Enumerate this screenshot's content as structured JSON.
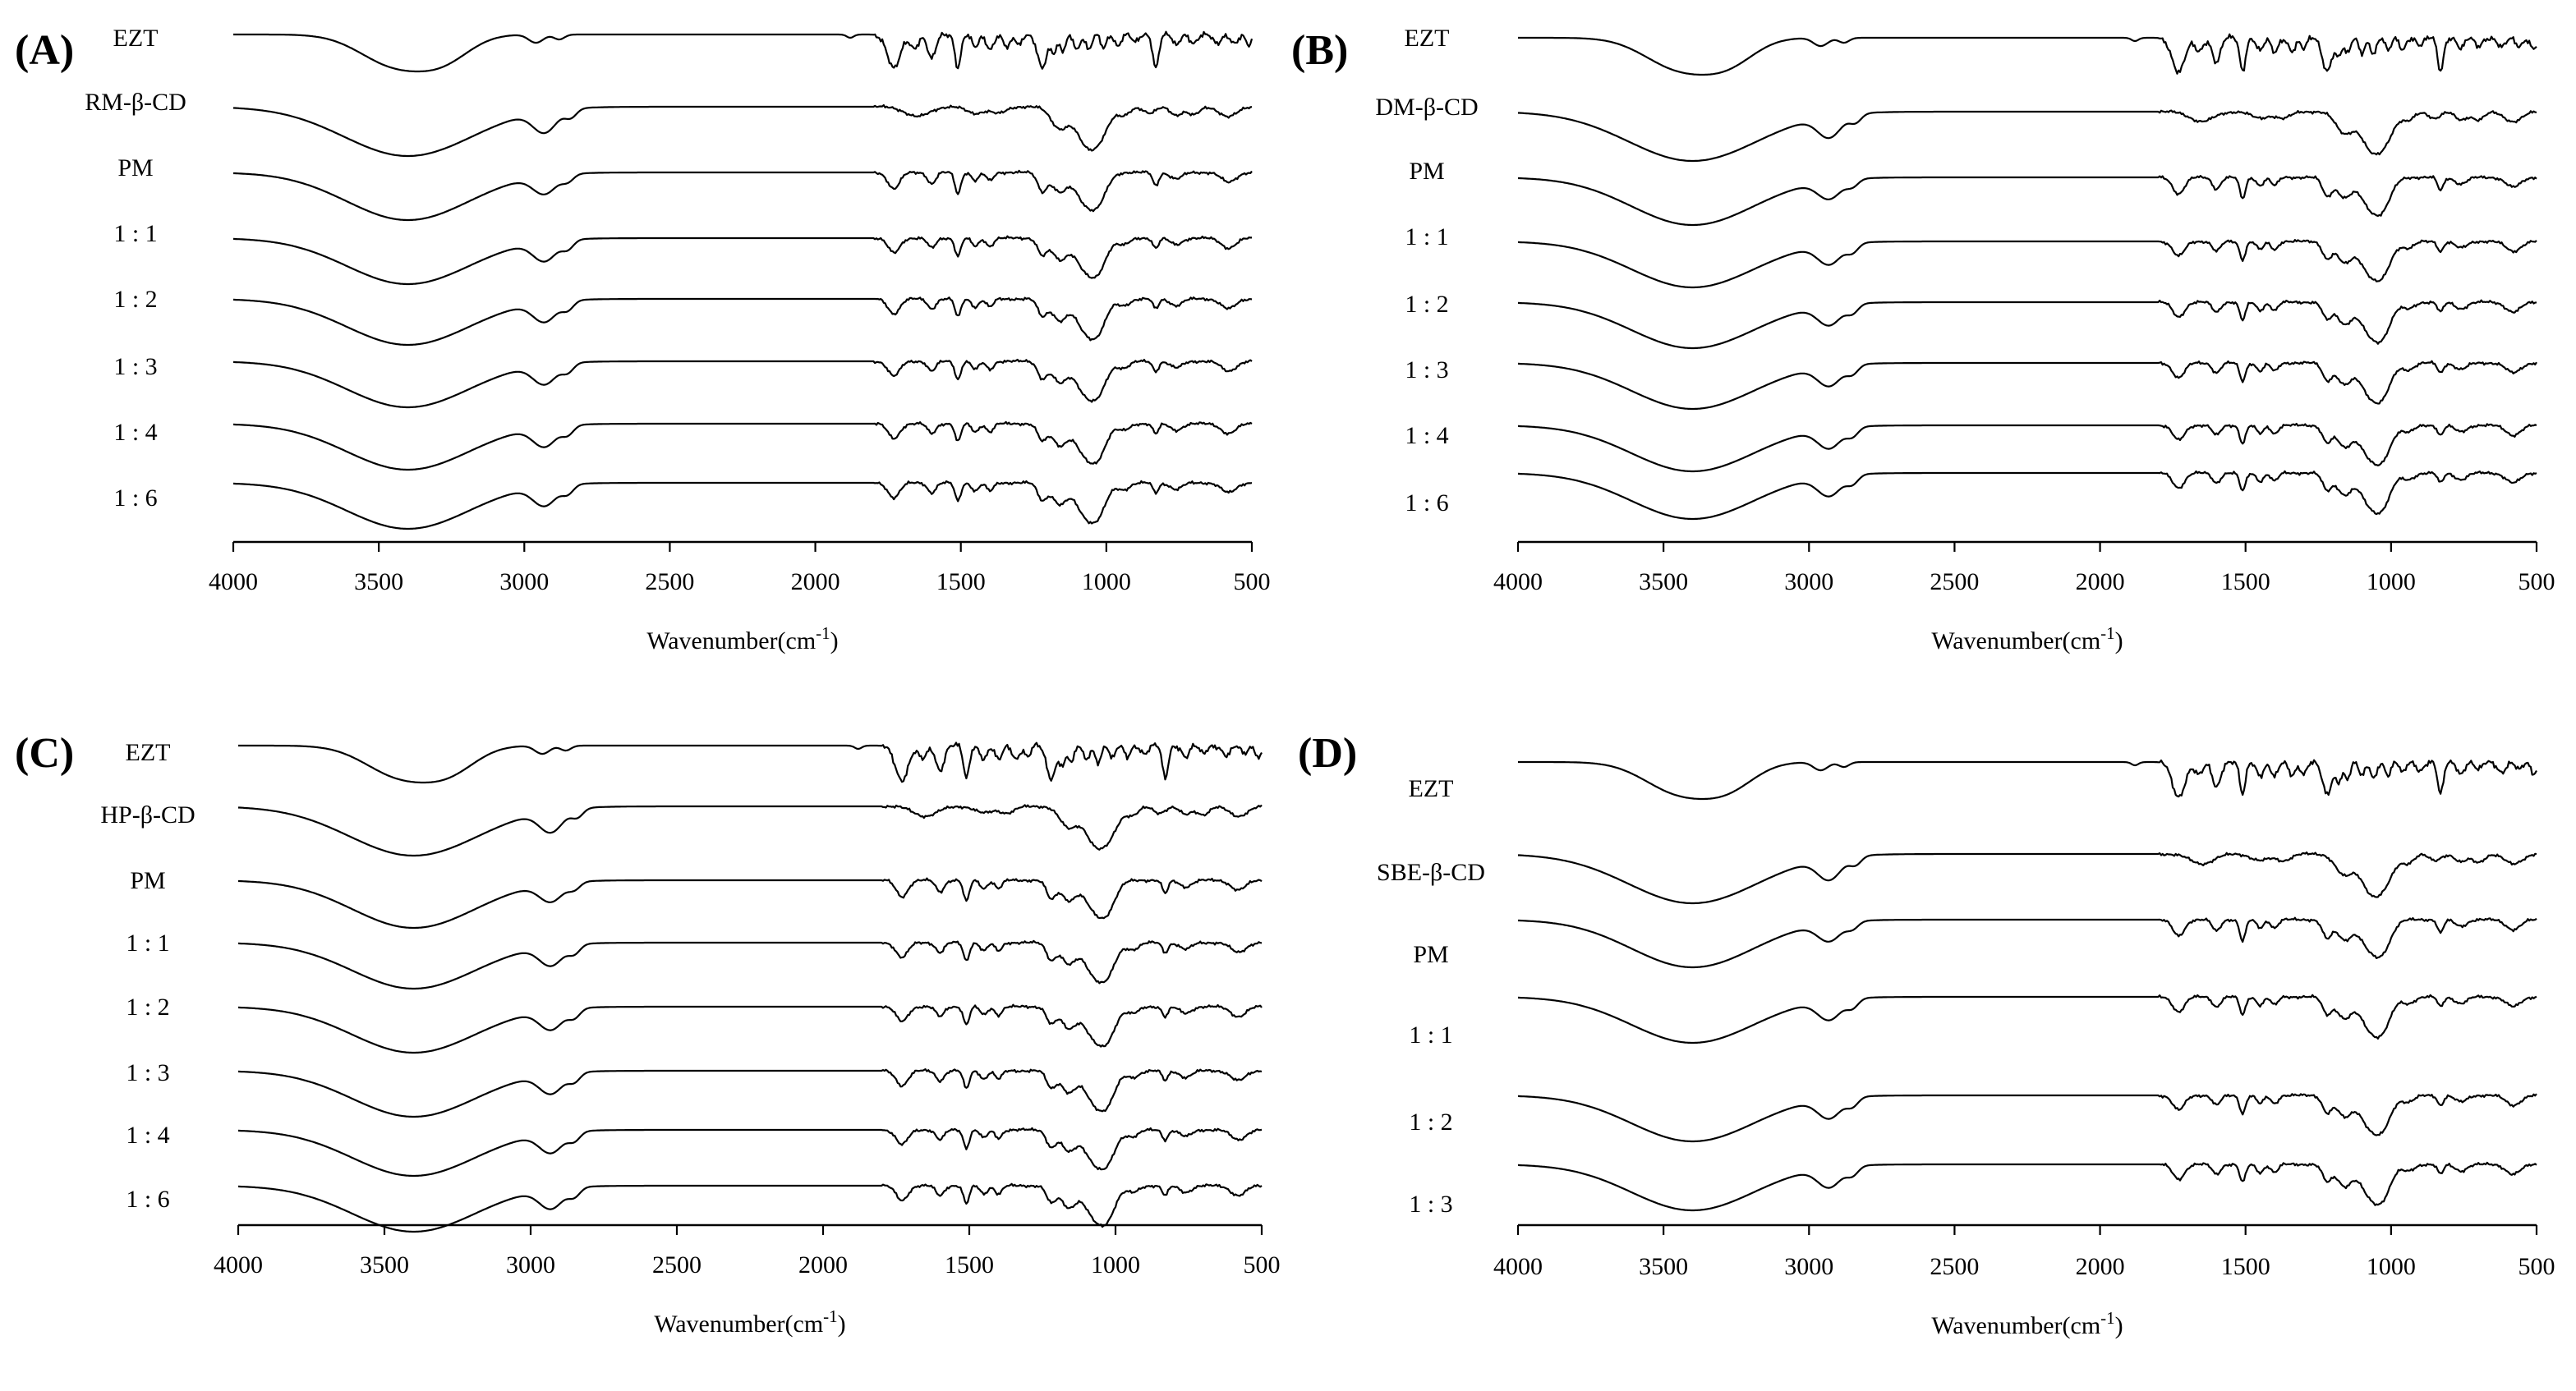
{
  "chart_data": [
    {
      "type": "line",
      "panel": "(A)",
      "cyclodextrin": "RM-β-CD",
      "xlabel": "Wavenumber(cm",
      "xlabel_sup": "-1",
      "xlabel_close": ")",
      "ylabel": "",
      "xlim": [
        4000,
        500
      ],
      "x_reversed": true,
      "xticks": [
        4000,
        3500,
        3000,
        2500,
        2000,
        1500,
        1000,
        500
      ],
      "y_axis_shown": false,
      "series": [
        {
          "name": "EZT",
          "kind": "drug"
        },
        {
          "name": "RM-β-CD",
          "kind": "cd"
        },
        {
          "name": "PM",
          "kind": "mix"
        },
        {
          "name": "1 : 1",
          "kind": "complex"
        },
        {
          "name": "1 : 2",
          "kind": "complex"
        },
        {
          "name": "1 : 3",
          "kind": "complex"
        },
        {
          "name": "1 : 4",
          "kind": "complex"
        },
        {
          "name": "1 : 6",
          "kind": "complex"
        }
      ]
    },
    {
      "type": "line",
      "panel": "(B)",
      "cyclodextrin": "DM-β-CD",
      "xlabel": "Wavenumber(cm",
      "xlabel_sup": "-1",
      "xlabel_close": ")",
      "ylabel": "",
      "xlim": [
        4000,
        500
      ],
      "x_reversed": true,
      "xticks": [
        4000,
        3500,
        3000,
        2500,
        2000,
        1500,
        1000,
        500
      ],
      "y_axis_shown": false,
      "series": [
        {
          "name": "EZT",
          "kind": "drug"
        },
        {
          "name": "DM-β-CD",
          "kind": "cd"
        },
        {
          "name": "PM",
          "kind": "mix"
        },
        {
          "name": "1 : 1",
          "kind": "complex"
        },
        {
          "name": "1 : 2",
          "kind": "complex"
        },
        {
          "name": "1 : 3",
          "kind": "complex"
        },
        {
          "name": "1 : 4",
          "kind": "complex"
        },
        {
          "name": "1 : 6",
          "kind": "complex"
        }
      ]
    },
    {
      "type": "line",
      "panel": "(C)",
      "cyclodextrin": "HP-β-CD",
      "xlabel": "Wavenumber(cm",
      "xlabel_sup": "-1",
      "xlabel_close": ")",
      "ylabel": "",
      "xlim": [
        4000,
        500
      ],
      "x_reversed": true,
      "xticks": [
        4000,
        3500,
        3000,
        2500,
        2000,
        1500,
        1000,
        500
      ],
      "y_axis_shown": false,
      "series": [
        {
          "name": "EZT",
          "kind": "drug"
        },
        {
          "name": "HP-β-CD",
          "kind": "cd"
        },
        {
          "name": "PM",
          "kind": "mix"
        },
        {
          "name": "1 : 1",
          "kind": "complex"
        },
        {
          "name": "1 : 2",
          "kind": "complex"
        },
        {
          "name": "1 : 3",
          "kind": "complex"
        },
        {
          "name": "1 : 4",
          "kind": "complex"
        },
        {
          "name": "1 : 6",
          "kind": "complex"
        }
      ]
    },
    {
      "type": "line",
      "panel": "(D)",
      "cyclodextrin": "SBE-β-CD",
      "xlabel": "Wavenumber(cm",
      "xlabel_sup": "-1",
      "xlabel_close": ")",
      "ylabel": "",
      "xlim": [
        4000,
        500
      ],
      "x_reversed": true,
      "xticks": [
        4000,
        3500,
        3000,
        2500,
        2000,
        1500,
        1000,
        500
      ],
      "y_axis_shown": false,
      "series": [
        {
          "name": "EZT",
          "kind": "drug"
        },
        {
          "name": "SBE-β-CD",
          "kind": "cd"
        },
        {
          "name": "PM",
          "kind": "mix"
        },
        {
          "name": "1 : 1",
          "kind": "complex"
        },
        {
          "name": "1 : 2",
          "kind": "complex"
        },
        {
          "name": "1 : 3",
          "kind": "complex"
        }
      ]
    }
  ],
  "colors": {
    "line": "#000000",
    "background": "#ffffff"
  }
}
